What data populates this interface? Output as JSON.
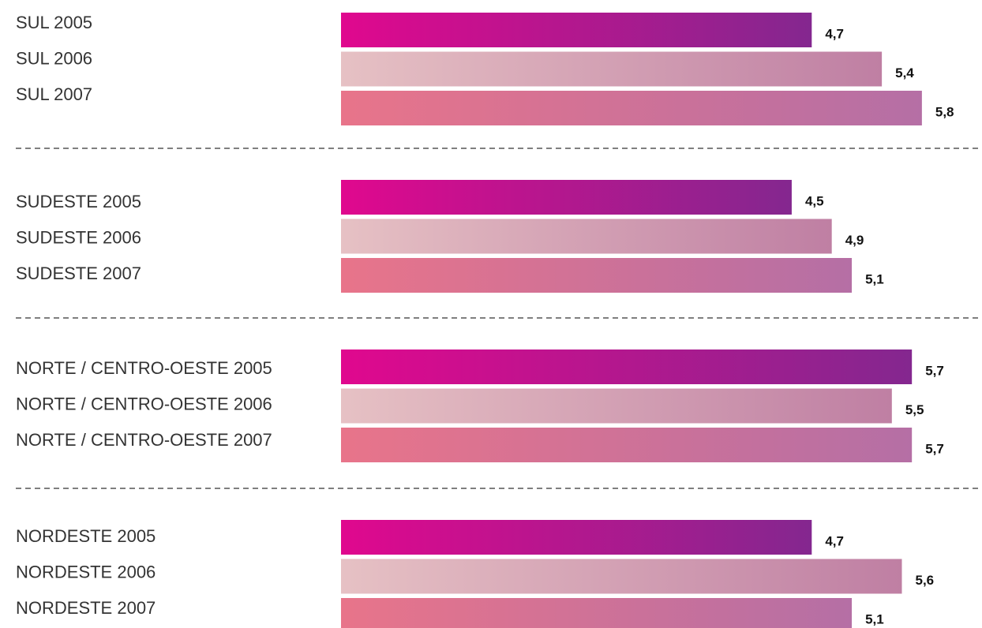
{
  "chart_data": {
    "type": "bar",
    "orientation": "horizontal",
    "xlim": [
      0,
      6.4
    ],
    "colors": [
      [
        "#e0088e",
        "#84278f"
      ],
      [
        "#e6c1c4",
        "#bf7fa3"
      ],
      [
        "#e8748a",
        "#b56fa5"
      ]
    ],
    "groups": [
      {
        "categories": [
          "SUL 2005",
          "SUL 2006",
          "SUL 2007"
        ],
        "values": [
          4.7,
          5.4,
          5.8
        ],
        "value_labels": [
          "4,7",
          "5,4",
          "5,8"
        ]
      },
      {
        "categories": [
          "SUDESTE 2005",
          "SUDESTE 2006",
          "SUDESTE 2007"
        ],
        "values": [
          4.5,
          4.9,
          5.1
        ],
        "value_labels": [
          "4,5",
          "4,9",
          "5,1"
        ]
      },
      {
        "categories": [
          "NORTE / CENTRO-OESTE 2005",
          "NORTE / CENTRO-OESTE 2006",
          "NORTE / CENTRO-OESTE 2007"
        ],
        "values": [
          5.7,
          5.5,
          5.7
        ],
        "value_labels": [
          "5,7",
          "5,5",
          "5,7"
        ]
      },
      {
        "categories": [
          "NORDESTE 2005",
          "NORDESTE 2006",
          "NORDESTE 2007"
        ],
        "values": [
          4.7,
          5.6,
          5.1
        ],
        "value_labels": [
          "4,7",
          "5,6",
          "5,1"
        ]
      }
    ]
  }
}
